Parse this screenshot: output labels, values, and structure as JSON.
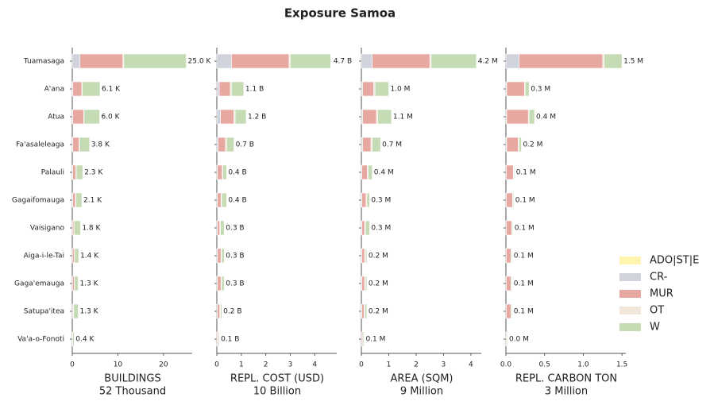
{
  "chart_data": {
    "type": "bar",
    "orientation": "horizontal",
    "title": "Exposure Samoa",
    "categories": [
      "Tuamasaga",
      "A'ana",
      "Atua",
      "Fa'asaleleaga",
      "Palauli",
      "Gagaifomauga",
      "Vaisigano",
      "Aiga-i-le-Tai",
      "Gaga'emauga",
      "Satupa'itea",
      "Va'a-o-Fonoti"
    ],
    "series": [
      {
        "name": "ADO|ST|E",
        "color": "#fff3b0"
      },
      {
        "name": "CR-",
        "color": "#d0d3dc"
      },
      {
        "name": "MUR",
        "color": "#e8a8a2"
      },
      {
        "name": "OT",
        "color": "#f2e6da"
      },
      {
        "name": "W",
        "color": "#c5dbb4"
      }
    ],
    "legend": "right",
    "panels": [
      {
        "xlabel": "BUILDINGS",
        "total_label": "52 Thousand",
        "xlim": [
          0,
          26.3
        ],
        "xticks": [
          0,
          10,
          20
        ],
        "series": [
          {
            "values": [
              0,
              0,
              0,
              0,
              0,
              0,
              0,
              0,
              0,
              0,
              0
            ]
          },
          {
            "values": [
              1.7,
              0.1,
              0.1,
              0.1,
              0.1,
              0.1,
              0.05,
              0.05,
              0.05,
              0.05,
              0
            ]
          },
          {
            "values": [
              9.4,
              2.0,
              2.4,
              1.4,
              0.7,
              0.6,
              0.3,
              0.4,
              0.4,
              0.2,
              0.1
            ]
          },
          {
            "values": [
              0.2,
              0.1,
              0.1,
              0.1,
              0.1,
              0.1,
              0.05,
              0.05,
              0.05,
              0.05,
              0
            ]
          },
          {
            "values": [
              13.7,
              3.9,
              3.4,
              2.2,
              1.4,
              1.3,
              1.4,
              0.9,
              0.8,
              1.0,
              0.3
            ]
          }
        ],
        "totals": [
          25.0,
          6.1,
          6.0,
          3.8,
          2.3,
          2.1,
          1.8,
          1.4,
          1.3,
          1.3,
          0.4
        ],
        "total_labels": [
          "25.0 K",
          "6.1 K",
          "6.0 K",
          "3.8 K",
          "2.3 K",
          "2.1 K",
          "1.8 K",
          "1.4 K",
          "1.3 K",
          "1.3 K",
          "0.4 K"
        ]
      },
      {
        "xlabel": "REPL. COST (USD)",
        "total_label": "10 Billion",
        "xlim": [
          0,
          4.9
        ],
        "xticks": [
          0,
          1,
          2,
          3,
          4
        ],
        "series": [
          {
            "values": [
              0,
              0,
              0,
              0,
              0,
              0,
              0,
              0,
              0,
              0,
              0
            ]
          },
          {
            "values": [
              0.6,
              0.1,
              0.15,
              0.05,
              0.02,
              0.02,
              0.02,
              0.02,
              0.02,
              0.02,
              0.01
            ]
          },
          {
            "values": [
              2.35,
              0.45,
              0.55,
              0.3,
              0.2,
              0.15,
              0.1,
              0.15,
              0.15,
              0.1,
              0.04
            ]
          },
          {
            "values": [
              0.05,
              0.05,
              0.05,
              0.05,
              0.03,
              0.03,
              0.03,
              0.03,
              0.03,
              0.03,
              0.01
            ]
          },
          {
            "values": [
              1.65,
              0.5,
              0.45,
              0.3,
              0.15,
              0.2,
              0.15,
              0.1,
              0.1,
              0.05,
              0.04
            ]
          }
        ],
        "totals": [
          4.7,
          1.1,
          1.2,
          0.7,
          0.4,
          0.4,
          0.3,
          0.3,
          0.3,
          0.2,
          0.1
        ],
        "total_labels": [
          "4.7 B",
          "1.1 B",
          "1.2 B",
          "0.7 B",
          "0.4 B",
          "0.4 B",
          "0.3 B",
          "0.3 B",
          "0.3 B",
          "0.2 B",
          "0.1 B"
        ]
      },
      {
        "xlabel": "AREA (SQM)",
        "total_label": "9 Million",
        "xlim": [
          0,
          4.38
        ],
        "xticks": [
          0,
          1,
          2,
          3,
          4
        ],
        "series": [
          {
            "values": [
              0,
              0,
              0,
              0,
              0,
              0,
              0,
              0,
              0,
              0,
              0
            ]
          },
          {
            "values": [
              0.4,
              0.05,
              0.05,
              0.05,
              0.02,
              0.02,
              0.02,
              0.02,
              0.02,
              0.02,
              0.01
            ]
          },
          {
            "values": [
              2.1,
              0.4,
              0.5,
              0.3,
              0.2,
              0.15,
              0.1,
              0.1,
              0.1,
              0.08,
              0.04
            ]
          },
          {
            "values": [
              0.05,
              0.05,
              0.05,
              0.05,
              0.03,
              0.03,
              0.03,
              0.03,
              0.03,
              0.03,
              0.01
            ]
          },
          {
            "values": [
              1.65,
              0.5,
              0.5,
              0.3,
              0.15,
              0.1,
              0.15,
              0.05,
              0.05,
              0.07,
              0.04
            ]
          }
        ],
        "totals": [
          4.2,
          1.0,
          1.1,
          0.7,
          0.4,
          0.3,
          0.3,
          0.2,
          0.2,
          0.2,
          0.1
        ],
        "total_labels": [
          "4.2 M",
          "1.0 M",
          "1.1 M",
          "0.7 M",
          "0.4 M",
          "0.3 M",
          "0.3 M",
          "0.2 M",
          "0.2 M",
          "0.2 M",
          "0.1 M"
        ]
      },
      {
        "xlabel": "REPL. CARBON TON",
        "total_label": "3 Million",
        "xlim": [
          0,
          1.55
        ],
        "xticks": [
          {
            "value": 0,
            "label": "0.0"
          },
          0.5,
          {
            "value": 1,
            "label": "1.0"
          },
          1.5
        ],
        "series": [
          {
            "values": [
              0,
              0,
              0,
              0,
              0,
              0,
              0,
              0,
              0,
              0,
              0
            ]
          },
          {
            "values": [
              0.17,
              0.01,
              0.01,
              0.01,
              0.005,
              0.005,
              0.005,
              0.005,
              0.005,
              0.005,
              0
            ]
          },
          {
            "values": [
              1.08,
              0.23,
              0.28,
              0.15,
              0.09,
              0.08,
              0.07,
              0.06,
              0.06,
              0.06,
              0.01
            ]
          },
          {
            "values": [
              0.02,
              0.01,
              0.01,
              0.01,
              0.005,
              0.005,
              0.005,
              0.005,
              0.005,
              0.005,
              0
            ]
          },
          {
            "values": [
              0.23,
              0.05,
              0.07,
              0.03,
              0.01,
              0.01,
              0.01,
              0.01,
              0.01,
              0.01,
              0.01
            ]
          }
        ],
        "totals": [
          1.5,
          0.3,
          0.37,
          0.2,
          0.11,
          0.1,
          0.09,
          0.08,
          0.08,
          0.08,
          0.02
        ],
        "total_labels": [
          "1.5 M",
          "0.3 M",
          "0.4 M",
          "0.2 M",
          "0.1 M",
          "0.1 M",
          "0.1 M",
          "0.1 M",
          "0.1 M",
          "0.1 M",
          "0.0 M"
        ]
      }
    ]
  }
}
